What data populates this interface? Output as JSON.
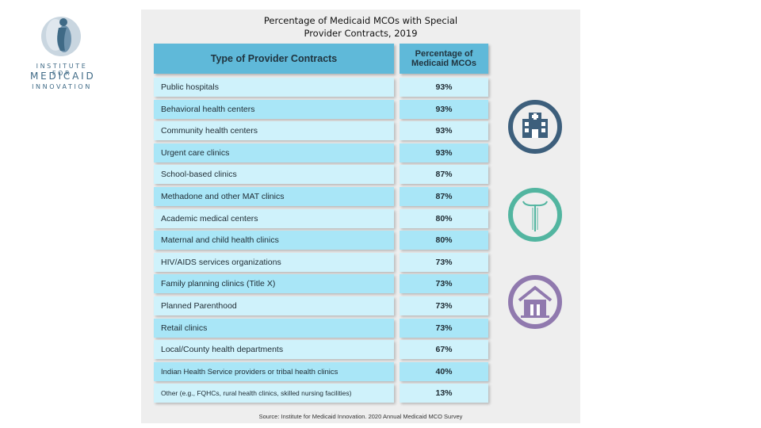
{
  "logo": {
    "line1": "INSTITUTE FOR",
    "line2": "MEDICAID",
    "line3": "INNOVATION"
  },
  "chart_data": {
    "type": "table",
    "title": "Percentage of Medicaid MCOs with Special Provider Contracts, 2019",
    "title_line1": "Percentage of Medicaid MCOs with Special",
    "title_line2": "Provider Contracts, 2019",
    "columns": [
      "Type of Provider Contracts",
      "Percentage of Medicaid MCOs"
    ],
    "col2_line1": "Percentage of",
    "col2_line2": "Medicaid MCOs",
    "rows": [
      {
        "label": "Public hospitals",
        "value": "93%"
      },
      {
        "label": "Behavioral health centers",
        "value": "93%"
      },
      {
        "label": "Community health centers",
        "value": "93%"
      },
      {
        "label": "Urgent care clinics",
        "value": "93%"
      },
      {
        "label": "School-based clinics",
        "value": "87%"
      },
      {
        "label": "Methadone and other MAT clinics",
        "value": "87%"
      },
      {
        "label": "Academic medical centers",
        "value": "80%"
      },
      {
        "label": "Maternal and child health clinics",
        "value": "80%"
      },
      {
        "label": "HIV/AIDS services organizations",
        "value": "73%"
      },
      {
        "label": "Family planning clinics (Title X)",
        "value": "73%"
      },
      {
        "label": "Planned Parenthood",
        "value": "73%"
      },
      {
        "label": "Retail clinics",
        "value": "73%"
      },
      {
        "label": "Local/County health departments",
        "value": "67%"
      },
      {
        "label": "Indian Health Service providers or tribal health clinics",
        "value": "40%"
      },
      {
        "label": "Other (e.g., FQHCs, rural health clinics, skilled nursing facilities)",
        "value": "13%"
      }
    ],
    "source": "Source: Institute for Medicaid Innovation. 2020 Annual Medicaid MCO Survey"
  },
  "icons": [
    {
      "name": "hospital-icon",
      "color": "#3d5f7c"
    },
    {
      "name": "iud-icon",
      "color": "#52b5a0"
    },
    {
      "name": "house-icon",
      "color": "#9079ae"
    }
  ],
  "colors": {
    "header": "#5fb9d9",
    "row_light": "#cff2fb",
    "row_dark": "#a9e6f7",
    "panel": "#eeeeee",
    "logo": "#3f6a86"
  }
}
